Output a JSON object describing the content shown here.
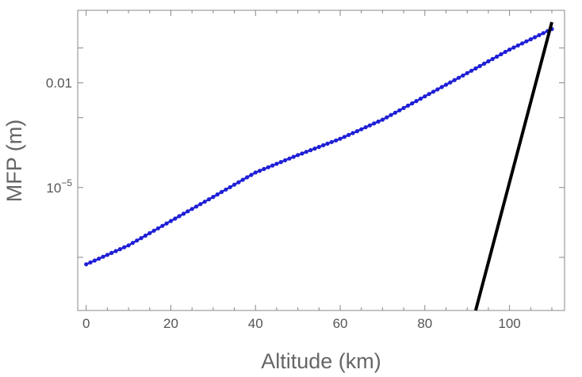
{
  "chart_data": {
    "type": "line",
    "xlabel": "Altitude (km)",
    "ylabel": "MFP (m)",
    "y_scale": "log",
    "xlim": [
      -2,
      113
    ],
    "ylim": [
      3e-09,
      1.2
    ],
    "x_ticks": [
      0,
      20,
      40,
      60,
      80,
      100
    ],
    "y_tick_labels": [
      {
        "value": 0.01,
        "base": "0.01",
        "exp": ""
      },
      {
        "value": 1e-05,
        "base": "10",
        "exp": "−5"
      }
    ],
    "grid": false,
    "series": [
      {
        "style": "points-with-line",
        "color": "#1f1fd6",
        "x_start": 0,
        "x_end": 110,
        "x_step": 1,
        "anchor_x": [
          0,
          10,
          20,
          30,
          40,
          50,
          60,
          70,
          80,
          90,
          100,
          110
        ],
        "anchor_y": [
          6.3e-08,
          2.2e-07,
          1.1e-06,
          5.4e-06,
          2.7e-05,
          8.5e-05,
          0.00025,
          0.00088,
          0.0041,
          0.019,
          0.09,
          0.35
        ]
      },
      {
        "style": "line",
        "color": "#000000",
        "x": [
          92,
          110
        ],
        "y": [
          3e-09,
          0.55
        ]
      }
    ]
  }
}
